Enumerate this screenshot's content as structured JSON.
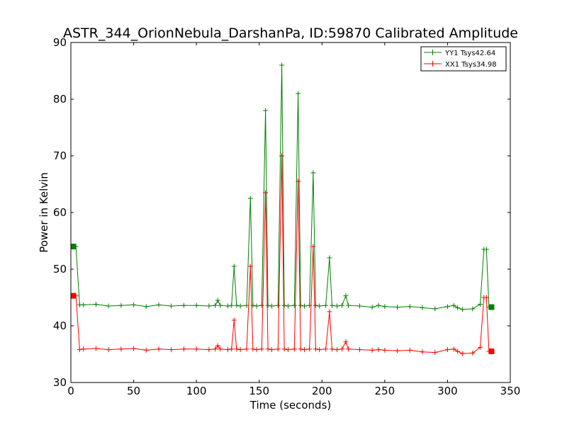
{
  "chart_data": {
    "type": "line",
    "title": "ASTR_344_OrionNebula_DarshanPa, ID:59870 Calibrated Amplitude",
    "xlabel": "Time (seconds)",
    "ylabel": "Power in Kelvin",
    "xlim": [
      0,
      350
    ],
    "ylim": [
      30,
      90
    ],
    "xticks": [
      "0",
      "50",
      "100",
      "150",
      "200",
      "250",
      "300",
      "350"
    ],
    "yticks": [
      "30",
      "40",
      "50",
      "60",
      "70",
      "80",
      "90"
    ],
    "grid": false,
    "legend_position": "top-right",
    "series": [
      {
        "name": "YY1 Tsys42.64",
        "color": "#008000",
        "x": [
          2,
          4,
          7,
          10,
          20,
          30,
          40,
          50,
          60,
          70,
          80,
          90,
          100,
          110,
          115,
          117,
          119,
          125,
          128,
          130,
          132,
          135,
          140,
          143,
          145,
          148,
          152,
          155,
          157,
          160,
          165,
          168,
          170,
          173,
          178,
          181,
          183,
          186,
          190,
          193,
          195,
          198,
          203,
          206,
          208,
          212,
          216,
          219,
          221,
          230,
          240,
          245,
          250,
          260,
          270,
          280,
          290,
          300,
          305,
          308,
          312,
          320,
          326,
          329,
          331,
          333,
          335
        ],
        "y": [
          54.0,
          54.0,
          43.7,
          43.7,
          43.8,
          43.5,
          43.6,
          43.7,
          43.4,
          43.7,
          43.5,
          43.6,
          43.6,
          43.5,
          43.6,
          44.5,
          43.6,
          43.5,
          43.6,
          50.5,
          43.6,
          43.5,
          43.6,
          62.5,
          43.6,
          43.5,
          43.6,
          78.0,
          43.6,
          43.5,
          43.6,
          86.0,
          43.6,
          43.5,
          43.6,
          81.0,
          43.6,
          43.5,
          43.6,
          67.0,
          43.6,
          43.5,
          43.6,
          52.0,
          43.6,
          43.5,
          43.6,
          45.3,
          43.6,
          43.5,
          43.3,
          43.6,
          43.4,
          43.3,
          43.4,
          43.2,
          43.0,
          43.4,
          43.6,
          43.2,
          42.9,
          43.0,
          43.8,
          53.5,
          53.5,
          43.3,
          43.3
        ]
      },
      {
        "name": "XX1 Tsys34.98",
        "color": "#ff0000",
        "x": [
          2,
          4,
          7,
          10,
          20,
          30,
          40,
          50,
          60,
          70,
          80,
          90,
          100,
          110,
          115,
          117,
          119,
          125,
          128,
          130,
          132,
          135,
          140,
          143,
          145,
          148,
          152,
          155,
          157,
          160,
          165,
          168,
          170,
          173,
          178,
          181,
          183,
          186,
          190,
          193,
          195,
          198,
          203,
          206,
          208,
          212,
          216,
          219,
          221,
          230,
          240,
          245,
          250,
          260,
          270,
          280,
          290,
          300,
          305,
          308,
          312,
          320,
          326,
          329,
          331,
          333,
          335
        ],
        "y": [
          45.3,
          45.3,
          35.8,
          35.9,
          36.0,
          35.8,
          35.9,
          36.0,
          35.7,
          35.9,
          35.8,
          35.9,
          35.9,
          35.8,
          35.9,
          36.5,
          35.9,
          35.8,
          35.9,
          41.0,
          35.9,
          35.8,
          35.9,
          50.5,
          35.9,
          35.8,
          35.9,
          63.5,
          35.9,
          35.8,
          35.9,
          70.0,
          35.9,
          35.8,
          35.9,
          65.5,
          35.9,
          35.8,
          35.9,
          54.0,
          35.9,
          35.8,
          35.9,
          42.5,
          35.9,
          35.8,
          35.9,
          37.2,
          35.9,
          35.8,
          35.7,
          35.8,
          35.7,
          35.6,
          35.7,
          35.4,
          35.3,
          35.8,
          35.9,
          35.5,
          35.1,
          35.2,
          36.2,
          45.0,
          45.0,
          35.5,
          35.5
        ]
      }
    ]
  }
}
